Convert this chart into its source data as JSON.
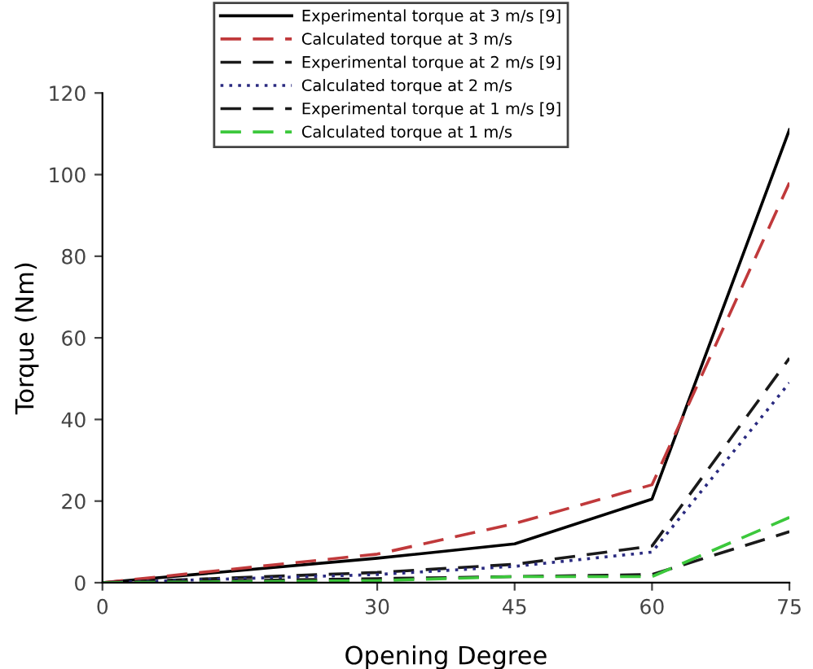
{
  "chart_data": {
    "type": "line",
    "xlabel": "Opening Degree",
    "ylabel": "Torque (Nm)",
    "x": [
      0,
      30,
      45,
      60,
      75
    ],
    "xlim": [
      0,
      75
    ],
    "xticks": [
      0,
      30,
      45,
      60,
      75
    ],
    "ylim": [
      0,
      120
    ],
    "yticks": [
      0,
      20,
      40,
      60,
      80,
      100,
      120
    ],
    "grid": false,
    "legend": "top",
    "marker": "none",
    "series": [
      {
        "name": "Experimental torque at 3 m/s [9]",
        "color": "#000000",
        "line_style": "solid",
        "values": [
          0,
          6,
          9.5,
          20.5,
          111
        ]
      },
      {
        "name": "Calculated torque at 3 m/s",
        "color": "#c0393b",
        "line_style": "dashed",
        "values": [
          0,
          7,
          14.5,
          24,
          98
        ]
      },
      {
        "name": "Experimental torque at 2 m/s [9]",
        "color": "#1a1a1a",
        "line_style": "dashed",
        "values": [
          0,
          2.5,
          4.5,
          9,
          55
        ]
      },
      {
        "name": "Calculated torque at 2 m/s",
        "color": "#2a2a80",
        "line_style": "dotted",
        "values": [
          0,
          2,
          4,
          7.5,
          49
        ]
      },
      {
        "name": "Experimental torque at 1 m/s [9]",
        "color": "#1a1a1a",
        "line_style": "dashed",
        "values": [
          0,
          1,
          1.5,
          2,
          12.5
        ]
      },
      {
        "name": "Calculated torque at 1 m/s",
        "color": "#3cc83c",
        "line_style": "dashed",
        "values": [
          0,
          0.5,
          1.5,
          1.5,
          16
        ]
      }
    ]
  }
}
